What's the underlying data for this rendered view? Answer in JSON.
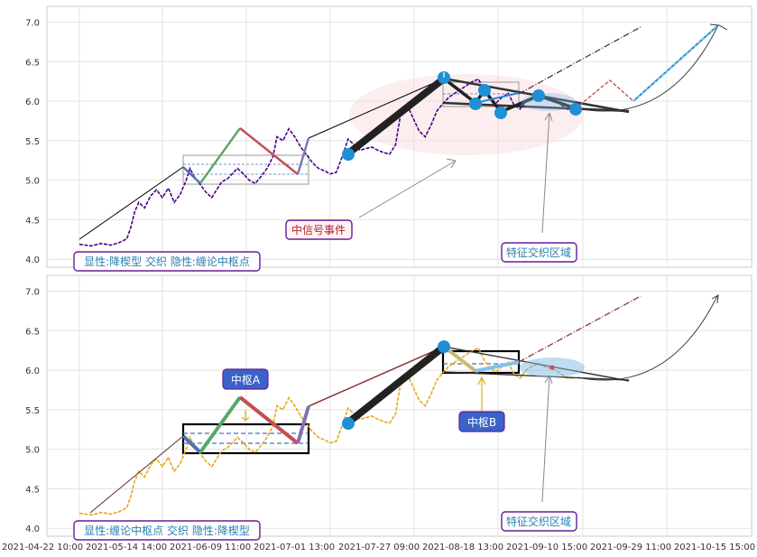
{
  "chart_data": [
    {
      "type": "line",
      "panel": "top",
      "ylim": [
        3.9,
        7.2
      ],
      "yticks": [
        4.0,
        4.5,
        5.0,
        5.5,
        6.0,
        6.5,
        7.0
      ],
      "ytick_labels": [
        "4.0",
        "4.5",
        "5.0",
        "5.5",
        "6.0",
        "6.5",
        "7.0"
      ],
      "grid": true,
      "price_color": "#4b0082",
      "series": [
        {
          "values": [
            [
              0.0,
              4.19
            ],
            [
              0.6,
              4.17
            ],
            [
              1.1,
              4.2
            ],
            [
              1.6,
              4.18
            ],
            [
              2.0,
              4.21
            ],
            [
              2.4,
              4.26
            ],
            [
              2.6,
              4.4
            ],
            [
              2.8,
              4.6
            ],
            [
              3.0,
              4.72
            ],
            [
              3.3,
              4.65
            ],
            [
              3.6,
              4.8
            ],
            [
              3.9,
              4.88
            ],
            [
              4.2,
              4.78
            ],
            [
              4.5,
              4.9
            ],
            [
              4.8,
              4.72
            ],
            [
              5.1,
              4.82
            ],
            [
              5.4,
              5.0
            ],
            [
              5.6,
              5.15
            ],
            [
              5.8,
              5.05
            ],
            [
              6.1,
              4.95
            ],
            [
              6.4,
              4.85
            ],
            [
              6.7,
              4.78
            ],
            [
              7.0,
              4.9
            ],
            [
              7.2,
              4.98
            ],
            [
              7.5,
              5.02
            ],
            [
              8.0,
              5.15
            ],
            [
              8.3,
              5.08
            ],
            [
              8.6,
              5.0
            ],
            [
              8.9,
              4.96
            ],
            [
              9.2,
              5.05
            ],
            [
              9.5,
              5.15
            ],
            [
              9.8,
              5.3
            ],
            [
              10.0,
              5.55
            ],
            [
              10.3,
              5.5
            ],
            [
              10.6,
              5.65
            ],
            [
              10.9,
              5.55
            ],
            [
              11.2,
              5.42
            ],
            [
              11.5,
              5.32
            ],
            [
              11.8,
              5.22
            ],
            [
              12.1,
              5.15
            ],
            [
              12.4,
              5.12
            ],
            [
              12.7,
              5.08
            ],
            [
              13.0,
              5.1
            ],
            [
              13.3,
              5.3
            ],
            [
              13.6,
              5.52
            ],
            [
              13.9,
              5.45
            ],
            [
              14.2,
              5.38
            ],
            [
              14.5,
              5.4
            ],
            [
              14.8,
              5.42
            ],
            [
              15.1,
              5.38
            ],
            [
              15.4,
              5.35
            ],
            [
              15.7,
              5.33
            ],
            [
              16.0,
              5.45
            ],
            [
              16.3,
              5.9
            ],
            [
              16.6,
              5.95
            ],
            [
              16.9,
              5.78
            ],
            [
              17.2,
              5.62
            ],
            [
              17.5,
              5.55
            ],
            [
              17.8,
              5.7
            ],
            [
              18.1,
              5.88
            ],
            [
              18.4,
              5.97
            ],
            [
              18.7,
              6.05
            ],
            [
              19.0,
              6.1
            ],
            [
              19.3,
              6.15
            ],
            [
              19.6,
              6.2
            ],
            [
              19.9,
              6.25
            ],
            [
              20.2,
              6.28
            ],
            [
              20.5,
              6.12
            ],
            [
              20.8,
              6.02
            ],
            [
              21.1,
              5.98
            ],
            [
              21.4,
              6.05
            ],
            [
              21.7,
              6.1
            ],
            [
              22.0,
              5.95
            ],
            [
              22.3,
              5.9
            ],
            [
              22.6,
              6.0
            ],
            [
              22.9,
              6.05
            ],
            [
              23.2,
              6.08
            ],
            [
              23.5,
              6.05
            ],
            [
              23.8,
              6.02
            ],
            [
              24.1,
              6.0
            ],
            [
              24.4,
              5.95
            ],
            [
              24.7,
              5.9
            ],
            [
              25.0,
              5.9
            ]
          ]
        }
      ]
    },
    {
      "type": "line",
      "panel": "bottom",
      "ylim": [
        3.9,
        7.2
      ],
      "yticks": [
        4.0,
        4.5,
        5.0,
        5.5,
        6.0,
        6.5,
        7.0
      ],
      "ytick_labels": [
        "4.0",
        "4.5",
        "5.0",
        "5.5",
        "6.0",
        "6.5",
        "7.0"
      ],
      "grid": true,
      "price_color": "#e6a817",
      "xtick_labels": [
        "2021-04-22 10:00",
        "2021-05-14 14:00",
        "2021-06-09 11:00",
        "2021-07-01 13:00",
        "2021-07-27 09:00",
        "2021-08-18 13:00",
        "2021-09-10 15:00",
        "2021-09-29 11:00",
        "2021-10-15 15:00"
      ],
      "series": [
        {
          "values": [
            [
              0.0,
              4.19
            ],
            [
              0.6,
              4.17
            ],
            [
              1.1,
              4.2
            ],
            [
              1.6,
              4.18
            ],
            [
              2.0,
              4.21
            ],
            [
              2.4,
              4.26
            ],
            [
              2.6,
              4.4
            ],
            [
              2.8,
              4.6
            ],
            [
              3.0,
              4.72
            ],
            [
              3.3,
              4.65
            ],
            [
              3.6,
              4.8
            ],
            [
              3.9,
              4.88
            ],
            [
              4.2,
              4.78
            ],
            [
              4.5,
              4.9
            ],
            [
              4.8,
              4.72
            ],
            [
              5.1,
              4.82
            ],
            [
              5.4,
              5.0
            ],
            [
              5.6,
              5.15
            ],
            [
              5.8,
              5.05
            ],
            [
              6.1,
              4.95
            ],
            [
              6.4,
              4.85
            ],
            [
              6.7,
              4.78
            ],
            [
              7.0,
              4.9
            ],
            [
              7.2,
              4.98
            ],
            [
              7.5,
              5.02
            ],
            [
              8.0,
              5.15
            ],
            [
              8.3,
              5.08
            ],
            [
              8.6,
              5.0
            ],
            [
              8.9,
              4.96
            ],
            [
              9.2,
              5.05
            ],
            [
              9.5,
              5.15
            ],
            [
              9.8,
              5.3
            ],
            [
              10.0,
              5.55
            ],
            [
              10.3,
              5.5
            ],
            [
              10.6,
              5.65
            ],
            [
              10.9,
              5.55
            ],
            [
              11.2,
              5.42
            ],
            [
              11.5,
              5.32
            ],
            [
              11.8,
              5.22
            ],
            [
              12.1,
              5.15
            ],
            [
              12.4,
              5.12
            ],
            [
              12.7,
              5.08
            ],
            [
              13.0,
              5.1
            ],
            [
              13.3,
              5.3
            ],
            [
              13.6,
              5.52
            ],
            [
              13.9,
              5.45
            ],
            [
              14.2,
              5.38
            ],
            [
              14.5,
              5.4
            ],
            [
              14.8,
              5.42
            ],
            [
              15.1,
              5.38
            ],
            [
              15.4,
              5.35
            ],
            [
              15.7,
              5.33
            ],
            [
              16.0,
              5.45
            ],
            [
              16.3,
              5.9
            ],
            [
              16.6,
              5.95
            ],
            [
              16.9,
              5.78
            ],
            [
              17.2,
              5.62
            ],
            [
              17.5,
              5.55
            ],
            [
              17.8,
              5.7
            ],
            [
              18.1,
              5.88
            ],
            [
              18.4,
              5.97
            ],
            [
              18.7,
              6.05
            ],
            [
              19.0,
              6.1
            ],
            [
              19.3,
              6.15
            ],
            [
              19.6,
              6.2
            ],
            [
              19.9,
              6.25
            ],
            [
              20.2,
              6.28
            ],
            [
              20.5,
              6.12
            ],
            [
              20.8,
              6.02
            ],
            [
              21.1,
              5.98
            ],
            [
              21.4,
              6.05
            ],
            [
              21.7,
              6.1
            ],
            [
              22.0,
              5.95
            ],
            [
              22.3,
              5.9
            ],
            [
              22.6,
              6.0
            ],
            [
              22.9,
              6.05
            ],
            [
              23.2,
              6.08
            ],
            [
              23.5,
              6.05
            ],
            [
              23.8,
              6.02
            ],
            [
              24.1,
              6.0
            ],
            [
              24.4,
              5.95
            ],
            [
              24.7,
              5.9
            ],
            [
              25.0,
              5.9
            ]
          ]
        }
      ]
    }
  ],
  "annotations": {
    "top_legend": "显性:降楔型 交织 隐性:缠论中枢点",
    "signal_event": "中信号事件",
    "feature_zone_top": "特征交织区域",
    "bottom_legend": "显性:缠论中枢点 交织 隐性:降楔型",
    "pivot_a": "中枢A",
    "pivot_b": "中枢B",
    "feature_zone_bottom": "特征交织区域"
  },
  "colors": {
    "bi_blue": "#4a72b8",
    "bi_green": "#55a868",
    "bi_red": "#c44e52",
    "bi_purple": "#8172b3",
    "bi_tan": "#ccb974",
    "marker": "#1f8fd6",
    "label_box": "#3a62c9",
    "legend_text": "#2a7fb0"
  }
}
